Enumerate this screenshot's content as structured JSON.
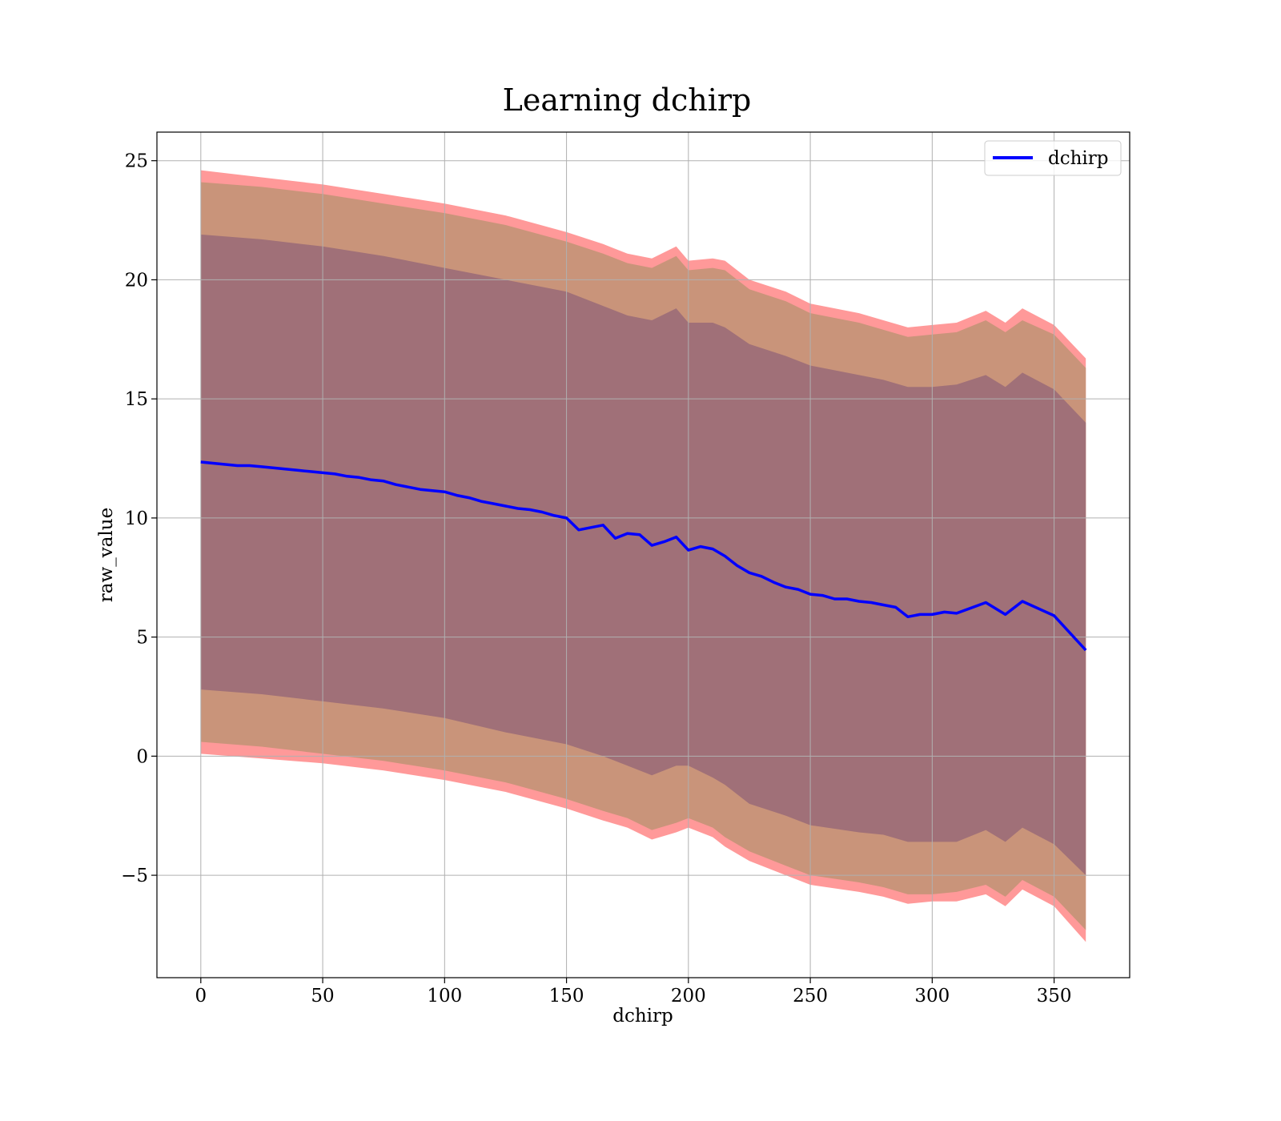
{
  "chart_data": {
    "type": "line",
    "title": "Learning dchirp",
    "xlabel": "dchirp",
    "ylabel": "raw_value",
    "xlim": [
      -18,
      381
    ],
    "ylim": [
      -9.3,
      26.2
    ],
    "x_ticks": [
      0,
      50,
      100,
      150,
      200,
      250,
      300,
      350
    ],
    "y_ticks": [
      -5,
      0,
      5,
      10,
      15,
      20,
      25
    ],
    "y_tick_labels": [
      "−5",
      "0",
      "5",
      "10",
      "15",
      "20",
      "25"
    ],
    "grid": true,
    "legend": {
      "placement": "top-right",
      "entries": [
        "dchirp"
      ]
    },
    "colors": {
      "line": "#0000ff",
      "band_outer": "#ff9999",
      "band_middle": "#c9947a",
      "band_inner": "#a07078",
      "grid": "#b0b0b0"
    },
    "series": [
      {
        "name": "dchirp",
        "x": [
          0,
          5,
          10,
          15,
          20,
          25,
          30,
          35,
          40,
          45,
          50,
          55,
          60,
          65,
          70,
          75,
          80,
          85,
          90,
          95,
          100,
          105,
          110,
          115,
          120,
          125,
          130,
          135,
          140,
          145,
          150,
          155,
          160,
          165,
          170,
          175,
          180,
          185,
          190,
          195,
          200,
          205,
          210,
          215,
          220,
          225,
          230,
          235,
          240,
          245,
          250,
          255,
          260,
          265,
          270,
          275,
          280,
          285,
          290,
          295,
          300,
          305,
          310,
          322,
          330,
          337,
          350,
          363
        ],
        "y": [
          12.35,
          12.3,
          12.25,
          12.2,
          12.2,
          12.15,
          12.1,
          12.05,
          12.0,
          11.95,
          11.9,
          11.85,
          11.75,
          11.7,
          11.6,
          11.55,
          11.4,
          11.3,
          11.2,
          11.15,
          11.1,
          10.95,
          10.85,
          10.7,
          10.6,
          10.5,
          10.4,
          10.35,
          10.25,
          10.1,
          10.0,
          9.5,
          9.6,
          9.7,
          9.15,
          9.35,
          9.3,
          8.85,
          9.0,
          9.2,
          8.65,
          8.8,
          8.7,
          8.4,
          8.0,
          7.7,
          7.55,
          7.3,
          7.1,
          7.0,
          6.8,
          6.75,
          6.6,
          6.6,
          6.5,
          6.45,
          6.35,
          6.25,
          5.85,
          5.95,
          5.95,
          6.05,
          6.0,
          6.45,
          5.95,
          6.5,
          5.9,
          4.45
        ]
      }
    ],
    "bands": [
      {
        "name": "outer",
        "x": [
          0,
          25,
          50,
          75,
          100,
          125,
          150,
          165,
          175,
          185,
          195,
          200,
          210,
          215,
          225,
          240,
          250,
          270,
          280,
          290,
          300,
          310,
          322,
          330,
          337,
          350,
          363
        ],
        "upper": [
          24.6,
          24.3,
          24.0,
          23.6,
          23.2,
          22.7,
          22.0,
          21.5,
          21.1,
          20.9,
          21.4,
          20.8,
          20.9,
          20.8,
          20.0,
          19.5,
          19.0,
          18.6,
          18.3,
          18.0,
          18.1,
          18.2,
          18.7,
          18.2,
          18.8,
          18.1,
          16.7
        ],
        "lower": [
          0.1,
          -0.1,
          -0.3,
          -0.6,
          -1.0,
          -1.5,
          -2.2,
          -2.7,
          -3.0,
          -3.5,
          -3.2,
          -3.0,
          -3.4,
          -3.8,
          -4.4,
          -5.0,
          -5.4,
          -5.7,
          -5.9,
          -6.2,
          -6.1,
          -6.1,
          -5.8,
          -6.3,
          -5.6,
          -6.3,
          -7.8
        ]
      },
      {
        "name": "middle",
        "x": [
          0,
          25,
          50,
          75,
          100,
          125,
          150,
          165,
          175,
          185,
          195,
          200,
          210,
          215,
          225,
          240,
          250,
          270,
          280,
          290,
          300,
          310,
          322,
          330,
          337,
          350,
          363
        ],
        "upper": [
          24.1,
          23.9,
          23.6,
          23.2,
          22.8,
          22.3,
          21.6,
          21.1,
          20.7,
          20.5,
          21.0,
          20.4,
          20.5,
          20.4,
          19.6,
          19.1,
          18.6,
          18.2,
          17.9,
          17.6,
          17.7,
          17.8,
          18.3,
          17.8,
          18.3,
          17.7,
          16.3
        ],
        "lower": [
          0.6,
          0.4,
          0.1,
          -0.2,
          -0.6,
          -1.1,
          -1.8,
          -2.3,
          -2.6,
          -3.1,
          -2.8,
          -2.6,
          -3.0,
          -3.4,
          -4.0,
          -4.6,
          -5.0,
          -5.3,
          -5.5,
          -5.8,
          -5.8,
          -5.7,
          -5.4,
          -5.9,
          -5.2,
          -5.9,
          -7.3
        ]
      },
      {
        "name": "inner",
        "x": [
          0,
          25,
          50,
          75,
          100,
          125,
          150,
          165,
          175,
          185,
          195,
          200,
          210,
          215,
          225,
          240,
          250,
          270,
          280,
          290,
          300,
          310,
          322,
          330,
          337,
          350,
          363
        ],
        "upper": [
          21.9,
          21.7,
          21.4,
          21.0,
          20.5,
          20.0,
          19.5,
          18.9,
          18.5,
          18.3,
          18.8,
          18.2,
          18.2,
          18.0,
          17.3,
          16.8,
          16.4,
          16.0,
          15.8,
          15.5,
          15.5,
          15.6,
          16.0,
          15.5,
          16.1,
          15.4,
          14.0
        ],
        "lower": [
          2.8,
          2.6,
          2.3,
          2.0,
          1.6,
          1.0,
          0.5,
          0.0,
          -0.4,
          -0.8,
          -0.4,
          -0.4,
          -0.9,
          -1.2,
          -2.0,
          -2.5,
          -2.9,
          -3.2,
          -3.3,
          -3.6,
          -3.6,
          -3.6,
          -3.1,
          -3.6,
          -3.0,
          -3.7,
          -5.0
        ]
      }
    ]
  }
}
